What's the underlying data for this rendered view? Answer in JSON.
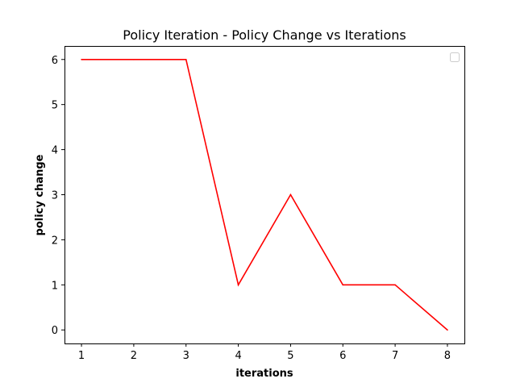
{
  "chart_data": {
    "type": "line",
    "title": "Policy Iteration - Policy Change vs Iterations",
    "xlabel": "iterations",
    "ylabel": "policy change",
    "x": [
      1,
      2,
      3,
      4,
      5,
      6,
      7,
      8
    ],
    "series": [
      {
        "values": [
          6,
          6,
          6,
          1,
          3,
          1,
          1,
          0
        ],
        "color": "#ff0000"
      }
    ],
    "xlim": [
      0.675,
      8.325
    ],
    "ylim": [
      -0.3,
      6.3
    ],
    "xticks": [
      1,
      2,
      3,
      4,
      5,
      6,
      7,
      8
    ],
    "yticks": [
      0,
      1,
      2,
      3,
      4,
      5,
      6
    ],
    "grid": false,
    "legend_placement": "top-right",
    "legend_entries": []
  }
}
